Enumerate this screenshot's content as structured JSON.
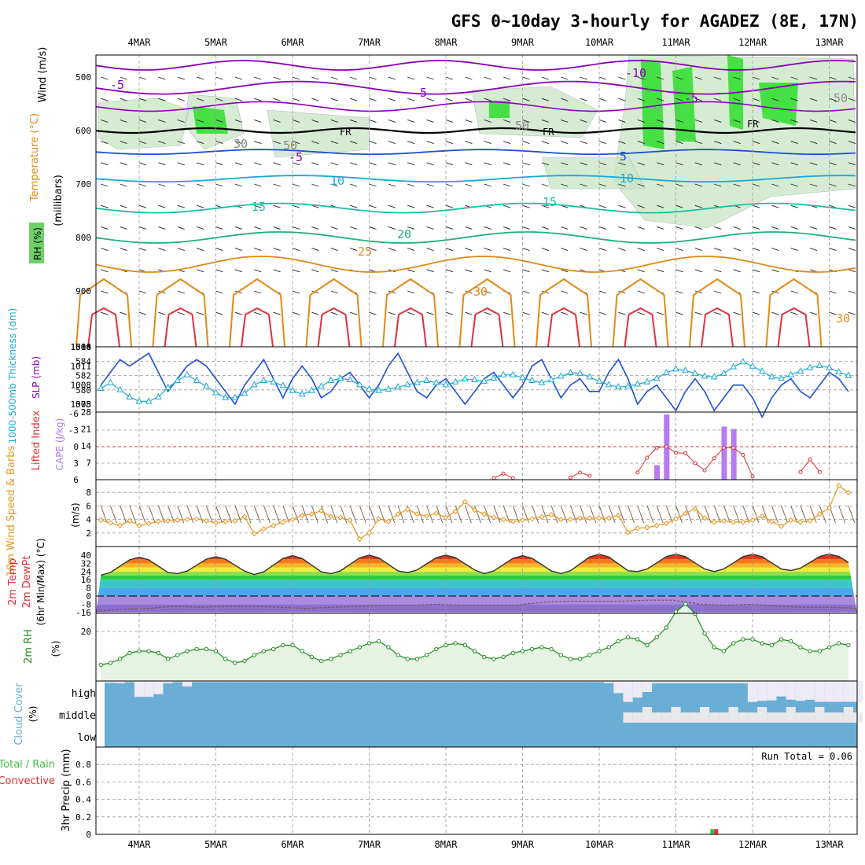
{
  "title": "GFS 0~10day 3-hourly for AGADEZ (8E, 17N)",
  "dates": [
    "4MAR",
    "5MAR",
    "6MAR",
    "7MAR",
    "8MAR",
    "9MAR",
    "10MAR",
    "11MAR",
    "12MAR",
    "13MAR"
  ],
  "colors": {
    "frame": "#000000",
    "grid": "#999999",
    "purple": "#8a00b8",
    "blue": "#1f4fd6",
    "cyan": "#19a9d6",
    "teal": "#1bbfa6",
    "green": "#21b07a",
    "orange": "#e08a1a",
    "red": "#e0303a",
    "rhgreen": "#6fd06a",
    "brightgreen": "#22dd22",
    "cloud": "#6aaed6",
    "cape": "#b57bef",
    "li": "#e03030",
    "wind10": "#e8961e",
    "rh2m": "#1e8c1e"
  },
  "panels": {
    "upper": {
      "ylabel_parts": [
        "Wind (m/s)",
        "Temperature (°C)",
        "RH (%)"
      ],
      "unit": "(millibars)",
      "ticks": [
        "500",
        "600",
        "700",
        "800",
        "900",
        "1000"
      ],
      "contour_labels": [
        "-5",
        "-10",
        "-5",
        "-5",
        "FR",
        "FR",
        "FR",
        "-5",
        "5",
        "10",
        "10",
        "15",
        "15",
        "20",
        "25",
        "30",
        "30",
        "50",
        "50",
        "50",
        "30"
      ]
    },
    "thickness": {
      "label": "1000-500mb Thickness (dm)",
      "slp_label": "SLP (mb)",
      "left_ticks": [
        "578",
        "580",
        "582",
        "584",
        "586"
      ],
      "right_ticks": [
        "1005",
        "1008",
        "1011",
        "1014"
      ]
    },
    "cape": {
      "label": "Lifted Index",
      "cape_label": "CAPE (J/kg)",
      "left_ticks": [
        "6",
        "3",
        "0",
        "-3",
        "-6"
      ],
      "right_ticks": [
        "7",
        "14",
        "21",
        "28"
      ]
    },
    "wind10": {
      "label": "10m Wind Speed & Barbs",
      "unit": "(m/s)",
      "ticks": [
        "2",
        "4",
        "6",
        "8"
      ]
    },
    "temp2m": {
      "label": "2m Temp",
      "label2": "2m DewPt",
      "label3": "(6hr Min/Max) (°C)",
      "ticks": [
        "40",
        "32",
        "24",
        "16",
        "8",
        "0",
        "-8",
        "-16"
      ]
    },
    "rh2m": {
      "label": "2m RH",
      "unit": "(%)",
      "ticks": [
        "20"
      ]
    },
    "cloud": {
      "label": "Cloud Cover",
      "unit": "(%)",
      "levels": [
        "high",
        "middle",
        "low"
      ]
    },
    "precip": {
      "label": "3hr Precip (mm)",
      "legend_total": "Total / Rain",
      "legend_conv": "Convective",
      "ticks": [
        "0",
        "0.2",
        "0.4",
        "0.6",
        "0.8"
      ],
      "run_total": "Run Total = 0.06"
    }
  },
  "chart_data": [
    {
      "type": "line",
      "panel": "1000-500mb thickness & SLP",
      "x": [
        "03/03 12Z",
        "03/03 15Z",
        "03/03 18Z",
        "03/03 21Z",
        "03/04 00Z",
        "03/04 03Z",
        "03/04 06Z",
        "03/04 09Z",
        "03/04 12Z",
        "03/04 15Z",
        "03/04 18Z",
        "03/04 21Z",
        "03/05 00Z",
        "03/05 03Z",
        "03/05 06Z",
        "03/05 09Z",
        "03/05 12Z",
        "03/05 15Z",
        "03/05 18Z",
        "03/05 21Z",
        "03/06 00Z",
        "03/06 03Z",
        "03/06 06Z",
        "03/06 09Z",
        "03/06 12Z",
        "03/06 15Z",
        "03/06 18Z",
        "03/06 21Z",
        "03/07 00Z",
        "03/07 03Z",
        "03/07 06Z",
        "03/07 09Z",
        "03/07 12Z",
        "03/07 15Z",
        "03/07 18Z",
        "03/07 21Z",
        "03/08 00Z",
        "03/08 03Z",
        "03/08 06Z",
        "03/08 09Z",
        "03/08 12Z",
        "03/08 15Z",
        "03/08 18Z",
        "03/08 21Z",
        "03/09 00Z",
        "03/09 03Z",
        "03/09 06Z",
        "03/09 09Z",
        "03/09 12Z",
        "03/09 15Z",
        "03/09 18Z",
        "03/09 21Z",
        "03/10 00Z",
        "03/10 03Z",
        "03/10 06Z",
        "03/10 09Z",
        "03/10 12Z",
        "03/10 15Z",
        "03/10 18Z",
        "03/10 21Z",
        "03/11 00Z",
        "03/11 03Z",
        "03/11 06Z",
        "03/11 09Z",
        "03/11 12Z",
        "03/11 15Z",
        "03/11 18Z",
        "03/11 21Z",
        "03/12 00Z",
        "03/12 03Z",
        "03/12 06Z",
        "03/12 09Z",
        "03/12 12Z",
        "03/12 15Z",
        "03/12 18Z",
        "03/12 21Z",
        "03/13 00Z",
        "03/13 03Z",
        "03/13 06Z",
        "03/13 09Z"
      ],
      "series": [
        {
          "name": "1000-500mb Thickness (dm)",
          "axis": "left",
          "values": [
            580.2,
            581.0,
            580.0,
            579.0,
            578.4,
            578.4,
            579.0,
            580.3,
            581.3,
            582.1,
            581.3,
            580.5,
            579.6,
            578.9,
            578.9,
            579.5,
            580.7,
            581.3,
            581.1,
            580.6,
            579.9,
            579.4,
            579.9,
            580.5,
            581.3,
            581.6,
            581.4,
            580.7,
            580.1,
            579.9,
            580.1,
            580.4,
            580.7,
            581.0,
            581.3,
            581.0,
            580.7,
            581.1,
            581.5,
            581.4,
            581.2,
            581.6,
            582.1,
            582.1,
            581.7,
            581.3,
            581.0,
            581.4,
            581.9,
            582.4,
            582.3,
            581.8,
            581.2,
            580.7,
            580.4,
            580.5,
            580.8,
            581.1,
            581.6,
            582.4,
            582.9,
            582.7,
            582.3,
            581.9,
            581.8,
            582.3,
            583.2,
            583.9,
            583.3,
            582.6,
            581.8,
            581.6,
            582.1,
            582.6,
            583.1,
            583.4,
            583.1,
            582.5,
            582.0,
            581.8
          ]
        },
        {
          "name": "SLP (mb)",
          "axis": "right",
          "values": [
            1008,
            1010,
            1012,
            1011,
            1012,
            1013,
            1010,
            1007,
            1009,
            1011,
            1012,
            1011,
            1009,
            1007,
            1005,
            1008,
            1010,
            1012,
            1009,
            1006,
            1009,
            1011,
            1009,
            1006,
            1007,
            1009,
            1010,
            1008,
            1006,
            1008,
            1011,
            1013,
            1010,
            1007,
            1006,
            1008,
            1009,
            1007,
            1005,
            1007,
            1009,
            1010,
            1008,
            1006,
            1008,
            1011,
            1012,
            1009,
            1006,
            1008,
            1009,
            1007,
            1007,
            1010,
            1012,
            1009,
            1005,
            1007,
            1008,
            1006,
            1004,
            1007,
            1009,
            1007,
            1004,
            1006,
            1008,
            1008,
            1006,
            1003,
            1006,
            1008,
            1009,
            1007,
            1006,
            1008,
            1010,
            1009,
            1007,
            1008
          ]
        }
      ]
    },
    {
      "type": "bar",
      "panel": "Lifted Index & CAPE",
      "series": [
        {
          "name": "CAPE (J/kg)",
          "axis": "right",
          "x": [
            "03/10 18Z",
            "03/10 21Z",
            "03/11 15Z",
            "03/11 18Z"
          ],
          "values": [
            6,
            27,
            22,
            21
          ]
        },
        {
          "name": "Lifted Index",
          "axis": "left",
          "x": [
            "03/08 15Z",
            "03/08 18Z",
            "03/08 21Z",
            "03/09 15Z",
            "03/09 18Z",
            "03/09 21Z",
            "03/10 12Z",
            "03/10 15Z",
            "03/10 18Z",
            "03/10 21Z",
            "03/11 00Z",
            "03/11 03Z",
            "03/11 06Z",
            "03/11 09Z",
            "03/11 12Z",
            "03/11 15Z",
            "03/11 18Z",
            "03/11 21Z",
            "03/12 00Z",
            "03/12 15Z",
            "03/12 18Z",
            "03/12 21Z"
          ],
          "values": [
            5.7,
            4.9,
            5.7,
            5.6,
            4.7,
            5.3,
            4.7,
            2.0,
            0.2,
            0.0,
            1.1,
            1.2,
            3.0,
            4.3,
            2.1,
            0.2,
            0.2,
            1.5,
            5.4,
            4.6,
            2.3,
            4.6
          ]
        }
      ],
      "ylim_left": [
        6,
        -6
      ],
      "ylim_right": [
        0,
        28
      ]
    },
    {
      "type": "line",
      "panel": "10m Wind Speed",
      "unit": "m/s",
      "values": [
        3.9,
        3.5,
        3.1,
        3.8,
        3.1,
        3.4,
        3.7,
        3.8,
        3.9,
        4.0,
        4.1,
        3.8,
        3.5,
        3.7,
        3.8,
        4.4,
        1.9,
        2.6,
        3.1,
        3.6,
        4.0,
        4.6,
        4.8,
        5.3,
        4.4,
        4.3,
        3.9,
        1.1,
        2.0,
        4.1,
        3.7,
        4.8,
        5.5,
        4.8,
        4.5,
        4.9,
        4.3,
        5.2,
        6.6,
        5.4,
        4.8,
        4.3,
        4.0,
        3.7,
        3.9,
        4.1,
        4.4,
        4.7,
        4.0,
        4.0,
        4.2,
        4.2,
        4.2,
        4.2,
        4.6,
        2.1,
        2.7,
        2.8,
        3.1,
        3.4,
        4.1,
        4.9,
        5.6,
        4.2,
        3.6,
        3.8,
        3.6,
        3.6,
        3.9,
        4.5,
        3.7,
        3.0,
        3.9,
        3.6,
        3.8,
        4.8,
        5.7,
        9.0,
        8.0,
        6.4
      ],
      "ylim": [
        0,
        10
      ]
    },
    {
      "type": "area",
      "panel": "2m Temp / DewPt",
      "unit": "°C",
      "series": [
        {
          "name": "2m Temp",
          "daily_min": [
            20.5,
            22,
            21,
            22,
            23,
            22,
            22,
            24,
            24,
            25
          ],
          "daily_max": [
            38,
            38.5,
            39.5,
            40,
            40,
            39.5,
            41,
            41,
            41,
            41
          ]
        },
        {
          "name": "2m DewPt",
          "values": [
            -15,
            -13,
            -12,
            -10,
            -11,
            -10,
            -10,
            -11,
            -12,
            -11,
            -10,
            -9,
            -9,
            -8,
            -9,
            -9,
            -9,
            -6,
            -5,
            -5,
            -5,
            -4,
            -4,
            -8,
            -9,
            -8,
            -10,
            -11,
            -11,
            -12
          ]
        }
      ],
      "ylim": [
        -16,
        40
      ]
    },
    {
      "type": "line",
      "panel": "2m RH",
      "unit": "%",
      "values": [
        3,
        4,
        6,
        9,
        10,
        10,
        9,
        6,
        8,
        10,
        11,
        11,
        10,
        6,
        4,
        5,
        8,
        10,
        11,
        13,
        13,
        10,
        7,
        5,
        6,
        8,
        10,
        12,
        14,
        15,
        12,
        8,
        6,
        6,
        8,
        11,
        13,
        14,
        13,
        10,
        7,
        6,
        7,
        9,
        10,
        11,
        12,
        11,
        8,
        6,
        6,
        8,
        10,
        12,
        15,
        17,
        16,
        13,
        17,
        22,
        30,
        34,
        29,
        19,
        12,
        10,
        14,
        16,
        16,
        14,
        13,
        16,
        15,
        12,
        10,
        10,
        12,
        14,
        13,
        12
      ],
      "ylim": [
        0,
        30
      ]
    },
    {
      "type": "heatmap",
      "panel": "Cloud Cover",
      "levels": [
        "high",
        "middle",
        "low"
      ],
      "clear_high_fraction": [
        0.08,
        0.08,
        0.1,
        0.05,
        0.72,
        0.72,
        0.6,
        0.1,
        0.05,
        0.25,
        0.05,
        0.05,
        0.05,
        0.05,
        0.05,
        0.05,
        0.05,
        0.05,
        0.05,
        0.05,
        0.05,
        0.05,
        0.05,
        0.05,
        0.05,
        0.05,
        0.05,
        0.05,
        0.05,
        0.05,
        0.05,
        0.05,
        0.05,
        0.05,
        0.05,
        0.05,
        0.05,
        0.05,
        0.05,
        0.05,
        0.05,
        0.05,
        0.05,
        0.05,
        0.05,
        0.05,
        0.05,
        0.05,
        0.05,
        0.05,
        0.05,
        0.05,
        0.05,
        0.1,
        0.55,
        0.95,
        0.75,
        0.5,
        0.1,
        0.1,
        0.1,
        0.1,
        0.1,
        0.1,
        0.1,
        0.1,
        0.1,
        0.1,
        0.95,
        0.9,
        0.88,
        0.7,
        0.85,
        0.9,
        0.85,
        0.95,
        0.95,
        0.95,
        0.95,
        0.95
      ]
    },
    {
      "type": "bar",
      "panel": "3hr Precip",
      "x": [
        "03/11 00Z"
      ],
      "series": [
        {
          "name": "Total / Rain",
          "values": [
            0.06
          ]
        },
        {
          "name": "Convective",
          "values": [
            0.06
          ]
        }
      ],
      "run_total": 0.06,
      "ylim": [
        0,
        1
      ]
    }
  ]
}
